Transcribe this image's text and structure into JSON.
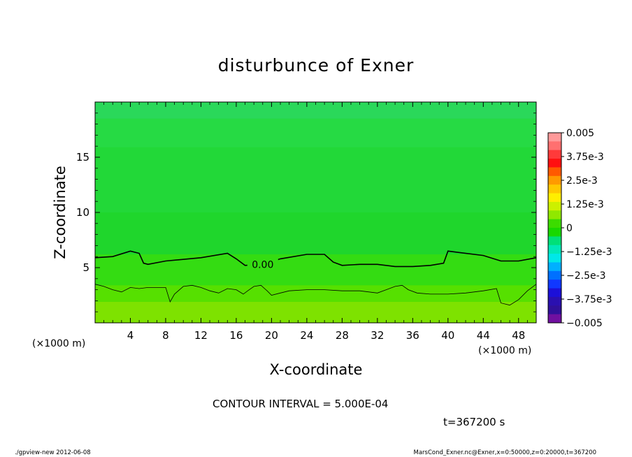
{
  "chart_data": {
    "type": "heatmap",
    "title": "disturbunce of Exner",
    "xlabel": "X-coordinate",
    "ylabel": "Z-coordinate",
    "x_unit_left": "(×1000 m)",
    "x_unit_right": "(×1000 m)",
    "xlim": [
      0,
      50
    ],
    "ylim": [
      0,
      20
    ],
    "x_ticks": [
      4,
      8,
      12,
      16,
      20,
      24,
      28,
      32,
      36,
      40,
      44,
      48
    ],
    "y_ticks": [
      5,
      10,
      15
    ],
    "colorbar": {
      "min": -0.005,
      "max": 0.005,
      "tick_values": [
        0.005,
        0.00375,
        0.0025,
        0.00125,
        0,
        -0.00125,
        -0.0025,
        -0.00375,
        -0.005
      ],
      "tick_labels": [
        "0.005",
        "3.75e-3",
        "2.5e-3",
        "1.25e-3",
        "0",
        "−1.25e-3",
        "−2.5e-3",
        "−3.75e-3",
        "−0.005"
      ],
      "colors_top_to_bottom": [
        "#ff9a9a",
        "#ff7070",
        "#ff3a3a",
        "#ff1010",
        "#ff5a00",
        "#ff9a00",
        "#ffc800",
        "#ffee00",
        "#ccf000",
        "#90e800",
        "#3cdc00",
        "#18d800",
        "#00e078",
        "#00e8b8",
        "#00e8e8",
        "#00b0ff",
        "#0070ff",
        "#1038ff",
        "#1c10d8",
        "#2a10b0",
        "#30109a",
        "#7010a0"
      ]
    },
    "field_layers": [
      {
        "z_top": 20,
        "value": 5e-05,
        "color": "#2ad85a"
      },
      {
        "z_top": 18.5,
        "value": 0.0001,
        "color": "#26da44"
      },
      {
        "z_top": 15.9,
        "value": 0.00015,
        "color": "#22d838"
      },
      {
        "z_top": 10,
        "value": 0.0002,
        "color": "#1fd62c"
      },
      {
        "z_top": 6.2,
        "value": 0.0004,
        "color": "#34dc12"
      },
      {
        "z_top": 3.4,
        "value": 0.0007,
        "color": "#56e000"
      },
      {
        "z_top": 1.9,
        "value": 0.001,
        "color": "#7ee200"
      }
    ],
    "contours": [
      {
        "value": 0.0,
        "label": "0.00",
        "x": [
          0,
          2,
          4,
          5,
          5.5,
          6,
          8,
          12,
          15,
          16,
          17,
          19,
          21,
          24,
          26,
          27,
          28,
          30,
          32,
          34,
          36,
          38,
          39.5,
          40,
          41,
          44,
          46,
          48,
          50
        ],
        "y": [
          5.9,
          6.0,
          6.5,
          6.3,
          5.4,
          5.3,
          5.6,
          5.9,
          6.3,
          5.8,
          5.2,
          5.3,
          5.8,
          6.2,
          6.2,
          5.5,
          5.2,
          5.3,
          5.3,
          5.1,
          5.1,
          5.2,
          5.4,
          6.5,
          6.4,
          6.1,
          5.6,
          5.6,
          5.9
        ]
      },
      {
        "value": 0.0005,
        "x": [
          0,
          1,
          2,
          3,
          4,
          5,
          6,
          7,
          8,
          8.5,
          9,
          10,
          11,
          12,
          13,
          14,
          15,
          16,
          16.8,
          17.3,
          18,
          18.8,
          19.5,
          20,
          21,
          22,
          24,
          26,
          28,
          30,
          32,
          33,
          34,
          34.8,
          35.5,
          36.5,
          38,
          40,
          42,
          44,
          45.5,
          46,
          47,
          48,
          49,
          50
        ],
        "y": [
          3.5,
          3.3,
          3.0,
          2.8,
          3.2,
          3.1,
          3.2,
          3.2,
          3.2,
          1.9,
          2.6,
          3.3,
          3.4,
          3.2,
          2.9,
          2.7,
          3.1,
          3.0,
          2.6,
          2.9,
          3.3,
          3.4,
          2.9,
          2.5,
          2.7,
          2.9,
          3.0,
          3.0,
          2.9,
          2.9,
          2.7,
          3.0,
          3.3,
          3.4,
          3.0,
          2.7,
          2.6,
          2.6,
          2.7,
          2.9,
          3.1,
          1.8,
          1.6,
          2.1,
          2.9,
          3.5
        ]
      }
    ]
  },
  "info": {
    "contour_interval": "CONTOUR INTERVAL = 5.000E-04",
    "time": "t=367200 s"
  },
  "footer": {
    "left": "./gpview-new  2012-06-08",
    "right": "MarsCond_Exner.nc@Exner,x=0:50000,z=0:20000,t=367200"
  }
}
